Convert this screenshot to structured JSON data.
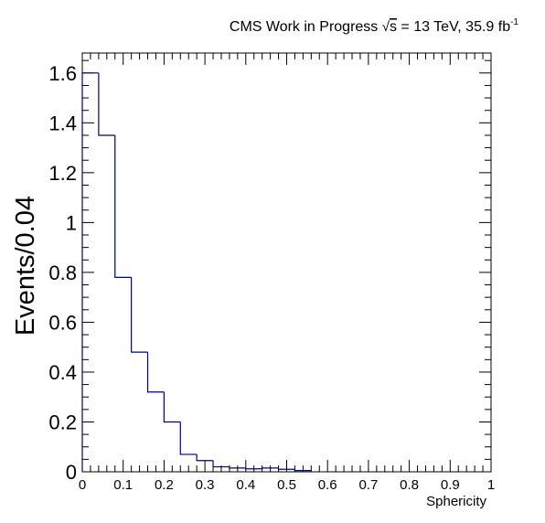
{
  "header": {
    "text_before_sqrt": "CMS Work in Progress ",
    "sqrt_symbol": "√",
    "sqrt_arg": "s",
    "text_after_sqrt": " = 13 TeV, 35.9 fb",
    "superscript": "-1"
  },
  "chart_data": {
    "type": "histogram",
    "xlabel": "Sphericity",
    "ylabel": "Events/0.04",
    "xlim": [
      0,
      1
    ],
    "ylim": [
      0,
      1.68
    ],
    "x_ticks": [
      "0",
      "0.1",
      "0.2",
      "0.3",
      "0.4",
      "0.5",
      "0.6",
      "0.7",
      "0.8",
      "0.9",
      "1"
    ],
    "y_ticks": [
      "0",
      "0.2",
      "0.4",
      "0.6",
      "0.8",
      "1",
      "1.2",
      "1.4",
      "1.6"
    ],
    "grid": false,
    "series": [
      {
        "color": "#000080",
        "bin_edges": [
          0,
          0.04,
          0.08,
          0.12,
          0.16,
          0.2,
          0.24,
          0.28,
          0.32,
          0.36,
          0.4,
          0.44,
          0.48,
          0.52,
          0.56
        ],
        "values": [
          1.6,
          1.35,
          0.78,
          0.48,
          0.32,
          0.2,
          0.07,
          0.045,
          0.02,
          0.015,
          0.012,
          0.015,
          0.01,
          0.005
        ]
      }
    ]
  }
}
